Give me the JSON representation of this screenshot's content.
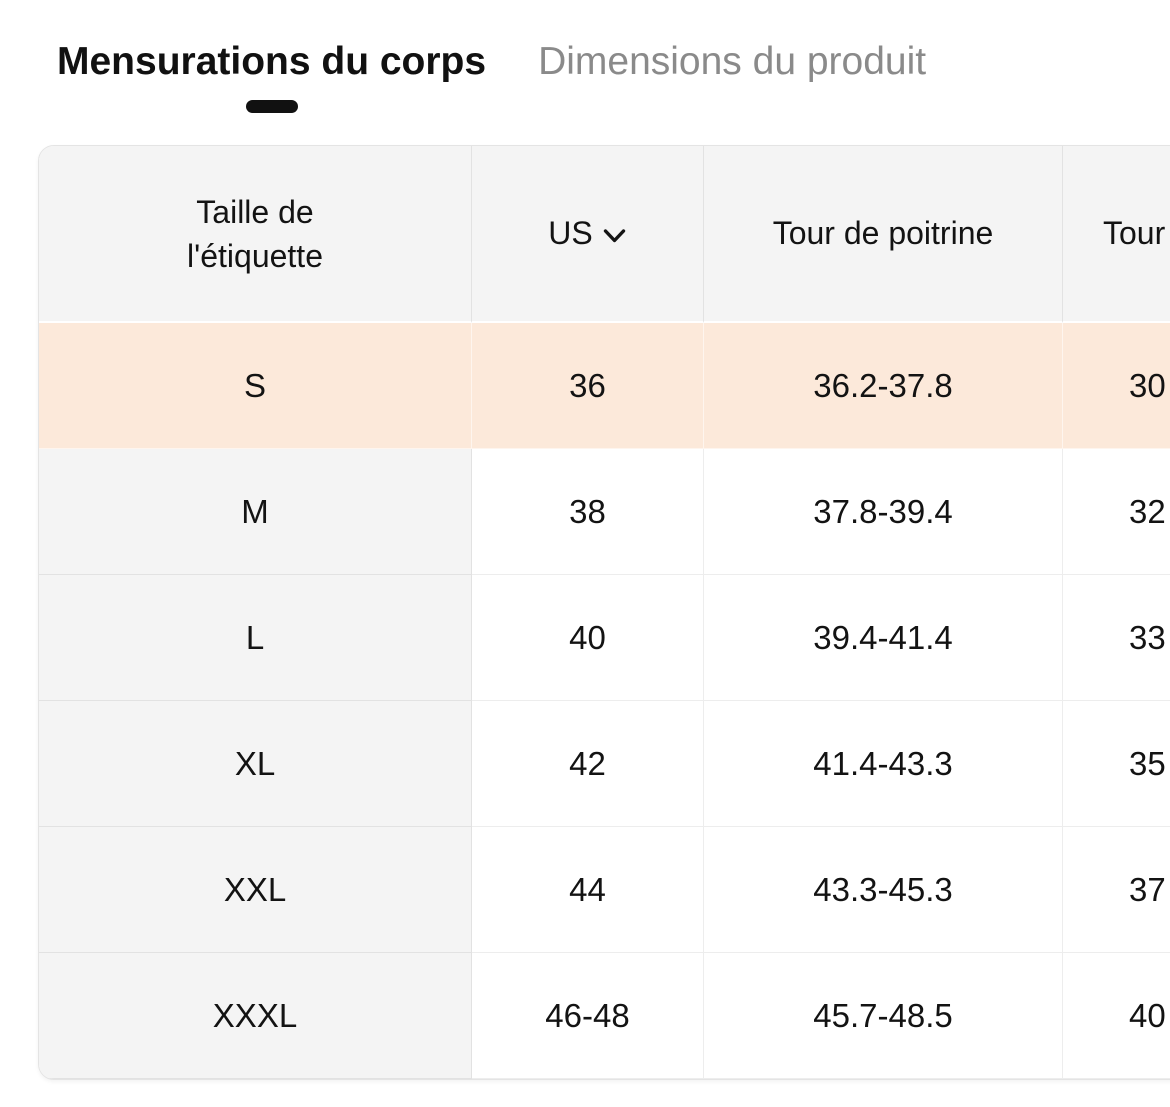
{
  "tabs": {
    "items": [
      {
        "label": "Mensurations du corps",
        "active": true
      },
      {
        "label": "Dimensions du produit",
        "active": false
      }
    ]
  },
  "size_table": {
    "headers": {
      "label_size": "Taille de\nl'étiquette",
      "us_unit": "US",
      "chest": "Tour de poitrine",
      "next_column_truncated": "Tour"
    },
    "rows": [
      {
        "label_size": "S",
        "us": "36",
        "chest": "36.2-37.8",
        "next": "30",
        "highlighted": true
      },
      {
        "label_size": "M",
        "us": "38",
        "chest": "37.8-39.4",
        "next": "32",
        "highlighted": false
      },
      {
        "label_size": "L",
        "us": "40",
        "chest": "39.4-41.4",
        "next": "33",
        "highlighted": false
      },
      {
        "label_size": "XL",
        "us": "42",
        "chest": "41.4-43.3",
        "next": "35",
        "highlighted": false
      },
      {
        "label_size": "XXL",
        "us": "44",
        "chest": "43.3-45.3",
        "next": "37",
        "highlighted": false
      },
      {
        "label_size": "XXXL",
        "us": "46-48",
        "chest": "45.7-48.5",
        "next": "40",
        "highlighted": false
      }
    ]
  },
  "colors": {
    "highlight_row_bg": "#fce9da",
    "header_bg": "#f4f4f4",
    "active_tab_text": "#111111",
    "inactive_tab_text": "#8a8a8a",
    "grid_line": "#e9e9e9",
    "tab_indicator": "#111111"
  }
}
